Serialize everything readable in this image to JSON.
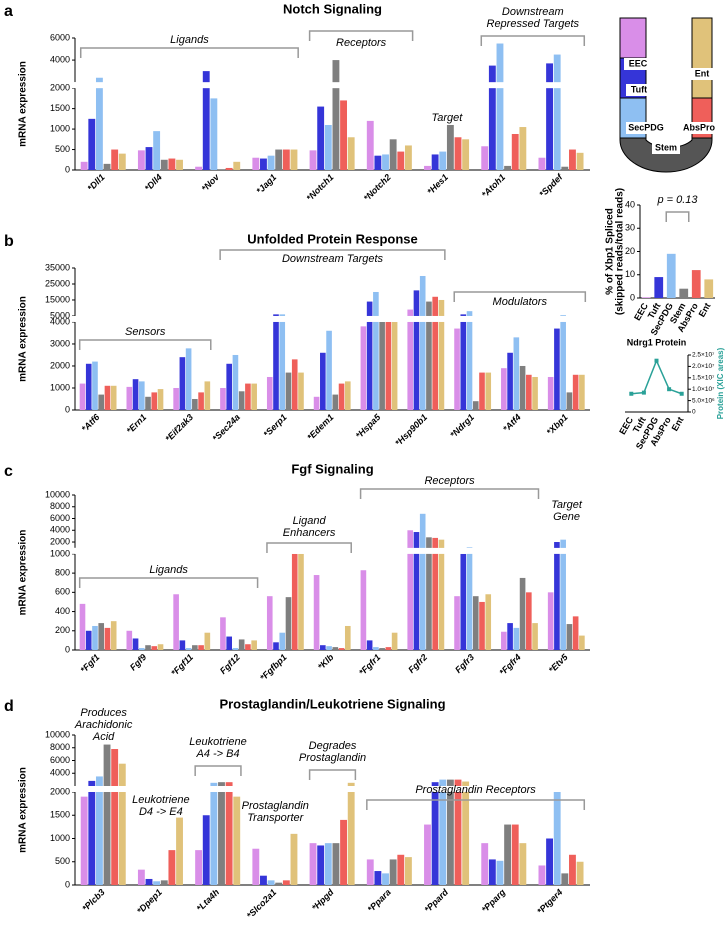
{
  "chart_data": [
    {
      "type": "bar",
      "label": "a",
      "title": "Notch Signaling",
      "ylabel": "mRNA expression",
      "categories": [
        "*Dll1",
        "*Dll4",
        "*Nov",
        "*Jag1",
        "*Notch1",
        "*Notch2",
        "*Hes1",
        "*Atoh1",
        "*Spdef"
      ],
      "series": [
        {
          "color": "#d98ee8",
          "values": [
            200,
            480,
            80,
            300,
            480,
            1200,
            100,
            580,
            300
          ]
        },
        {
          "color": "#3535d8",
          "values": [
            1250,
            560,
            3000,
            280,
            1550,
            350,
            380,
            3500,
            3700
          ]
        },
        {
          "color": "#8ebff2",
          "values": [
            2400,
            950,
            1750,
            350,
            1100,
            380,
            450,
            5500,
            4500
          ]
        },
        {
          "color": "#7f7f7f",
          "values": [
            150,
            250,
            20,
            500,
            4000,
            750,
            1100,
            100,
            80
          ]
        },
        {
          "color": "#ef5f5a",
          "values": [
            500,
            280,
            50,
            500,
            1700,
            450,
            800,
            880,
            500
          ]
        },
        {
          "color": "#e0c27a",
          "values": [
            400,
            250,
            200,
            500,
            800,
            600,
            750,
            1050,
            420
          ]
        }
      ],
      "ylim": [
        0,
        6000
      ],
      "ybreak": [
        2000,
        2000
      ],
      "yticks": [
        0,
        500,
        1000,
        1500,
        2000,
        4000,
        6000
      ],
      "annotations": [
        [
          "Ligands"
        ],
        [
          "Receptors"
        ],
        [
          "Target"
        ],
        [
          "Downstream",
          "Repressed Targets"
        ]
      ]
    },
    {
      "type": "bar",
      "label": "b",
      "title": "Unfolded Protein Response",
      "ylabel": "mRNA expression",
      "categories": [
        "*Atf6",
        "*Ern1",
        "*Eif2ak3",
        "*Sec24a",
        "*Serp1",
        "*Edem1",
        "*Hspa5",
        "*Hsp90b1",
        "*Ndrg1",
        "*Atf4",
        "*Xbp1"
      ],
      "series": [
        {
          "color": "#d98ee8",
          "values": [
            1200,
            1050,
            1000,
            1000,
            1500,
            600,
            3800,
            9000,
            3700,
            1900,
            1500
          ]
        },
        {
          "color": "#3535d8",
          "values": [
            2100,
            1400,
            2400,
            2100,
            6000,
            2600,
            14000,
            21000,
            6000,
            2600,
            3700
          ]
        },
        {
          "color": "#8ebff2",
          "values": [
            2200,
            1300,
            2800,
            2500,
            6000,
            3600,
            20000,
            30000,
            8000,
            3300,
            5500
          ]
        },
        {
          "color": "#7f7f7f",
          "values": [
            700,
            600,
            500,
            850,
            1700,
            700,
            4900,
            14000,
            400,
            2000,
            800
          ]
        },
        {
          "color": "#ef5f5a",
          "values": [
            1100,
            800,
            800,
            1200,
            2300,
            1200,
            4900,
            17000,
            1700,
            1600,
            1600
          ]
        },
        {
          "color": "#e0c27a",
          "values": [
            1100,
            950,
            1300,
            1200,
            1700,
            1300,
            4900,
            15000,
            1700,
            1500,
            1600
          ]
        }
      ],
      "ylim": [
        0,
        35000
      ],
      "ybreak": [
        4000,
        5000
      ],
      "yticks": [
        0,
        1000,
        2000,
        3000,
        4000,
        5000,
        15000,
        25000,
        35000
      ],
      "annotations": [
        [
          "Sensors"
        ],
        [
          "Downstream Targets"
        ],
        [
          "Modulators"
        ]
      ]
    },
    {
      "type": "bar",
      "label": "c",
      "title": "Fgf Signaling",
      "ylabel": "mRNA expression",
      "categories": [
        "*Fgf1",
        "Fgf9",
        "*Fgf11",
        "Fgf12",
        "*Fgfbp1",
        "*Klb",
        "*Fgfr1",
        "Fgfr2",
        "Fgfr3",
        "*Fgfr4",
        "*Etv5"
      ],
      "series": [
        {
          "color": "#d98ee8",
          "values": [
            480,
            200,
            580,
            340,
            560,
            780,
            830,
            4000,
            560,
            190,
            600
          ]
        },
        {
          "color": "#3535d8",
          "values": [
            200,
            120,
            100,
            140,
            80,
            50,
            100,
            3700,
            1000,
            280,
            2000
          ]
        },
        {
          "color": "#8ebff2",
          "values": [
            250,
            20,
            20,
            20,
            180,
            40,
            30,
            6800,
            1100,
            230,
            2400
          ]
        },
        {
          "color": "#7f7f7f",
          "values": [
            280,
            50,
            50,
            110,
            550,
            30,
            20,
            2800,
            560,
            750,
            270
          ]
        },
        {
          "color": "#ef5f5a",
          "values": [
            230,
            40,
            50,
            60,
            1000,
            20,
            30,
            2700,
            500,
            600,
            350
          ]
        },
        {
          "color": "#e0c27a",
          "values": [
            300,
            60,
            180,
            100,
            1000,
            250,
            180,
            2400,
            580,
            280,
            150
          ]
        }
      ],
      "ylim": [
        0,
        10000
      ],
      "ybreak": [
        1000,
        1000
      ],
      "yticks": [
        0,
        200,
        400,
        600,
        800,
        1000,
        2000,
        4000,
        6000,
        8000,
        10000
      ],
      "annotations": [
        [
          "Ligands"
        ],
        [
          "Ligand",
          "Enhancers"
        ],
        [
          "Receptors"
        ],
        [
          "Target",
          "Gene"
        ]
      ]
    },
    {
      "type": "bar",
      "label": "d",
      "title": "Prostaglandin/Leukotriene Signaling",
      "ylabel": "mRNA expression",
      "categories": [
        "*Plcb3",
        "*Dpep1",
        "*Lta4h",
        "*Slco2a1",
        "*Hpgd",
        "*Ppara",
        "*Ppard",
        "*Pparg",
        "*Ptger4"
      ],
      "series": [
        {
          "color": "#d98ee8",
          "values": [
            1900,
            330,
            750,
            780,
            900,
            550,
            1300,
            900,
            420
          ]
        },
        {
          "color": "#3535d8",
          "values": [
            2800,
            130,
            1500,
            200,
            850,
            300,
            2600,
            550,
            1000
          ]
        },
        {
          "color": "#8ebff2",
          "values": [
            3500,
            80,
            2500,
            100,
            900,
            250,
            3000,
            520,
            2000
          ]
        },
        {
          "color": "#7f7f7f",
          "values": [
            8500,
            100,
            2600,
            50,
            900,
            550,
            3000,
            1300,
            250
          ]
        },
        {
          "color": "#ef5f5a",
          "values": [
            7800,
            750,
            2600,
            100,
            1400,
            650,
            3000,
            1300,
            650
          ]
        },
        {
          "color": "#e0c27a",
          "values": [
            5500,
            1450,
            1900,
            1100,
            2500,
            600,
            2700,
            900,
            500
          ]
        }
      ],
      "ylim": [
        0,
        10000
      ],
      "ybreak": [
        2000,
        2000
      ],
      "yticks": [
        0,
        500,
        1000,
        1500,
        2000,
        4000,
        6000,
        8000,
        10000
      ],
      "annotations": [
        [
          "Produces",
          "Arachidonic",
          "Acid"
        ],
        [
          "Leukotriene",
          "D4 -> E4"
        ],
        [
          "Leukotriene",
          "A4 -> B4"
        ],
        [
          "Prostaglandin",
          "Transporter"
        ],
        [
          "Degrades",
          "Prostaglandin"
        ],
        [
          "Prostaglandin Receptors"
        ]
      ]
    },
    {
      "type": "bar",
      "ylabel": [
        "% of Xbp1 Spliced",
        "(skipped reads/total reads)"
      ],
      "categories": [
        "EEC",
        "Tuft",
        "SecPDG",
        "Stem",
        "AbsPro",
        "Ent"
      ],
      "values": [
        0.3,
        9,
        19,
        4,
        12,
        8
      ],
      "colors": [
        "#d98ee8",
        "#3535d8",
        "#8ebff2",
        "#7f7f7f",
        "#ef5f5a",
        "#e0c27a"
      ],
      "ylim": [
        0,
        40
      ],
      "yticks": [
        0,
        10,
        20,
        30,
        40
      ],
      "annotations": [
        [
          "p = 0.13"
        ]
      ]
    },
    {
      "type": "line",
      "title": "Ndrg1 Protein",
      "y2label": "Protein (XIC areas)",
      "categories": [
        "EEC",
        "Tuft",
        "SecPDG",
        "AbsPro",
        "Ent"
      ],
      "series": [
        {
          "axis": "y2",
          "color": "#2aa198",
          "values": [
            8000000,
            8500000,
            22500000,
            10000000,
            8000000
          ]
        }
      ],
      "y2lim": [
        0,
        25000000
      ],
      "y2ticks": [
        0,
        {
          "value": 5000000,
          "label": "5.0×10⁶"
        },
        {
          "value": 10000000,
          "label": "1.0×10⁷"
        },
        {
          "value": 15000000,
          "label": "1.5×10⁷"
        },
        {
          "value": 20000000,
          "label": "2.0×10⁷"
        },
        {
          "value": 25000000,
          "label": "2.5×10⁷"
        }
      ]
    }
  ],
  "diagram": {
    "labels": [
      "EEC",
      "Tuft",
      "SecPDG",
      "Stem",
      "AbsPro",
      "Ent"
    ]
  }
}
